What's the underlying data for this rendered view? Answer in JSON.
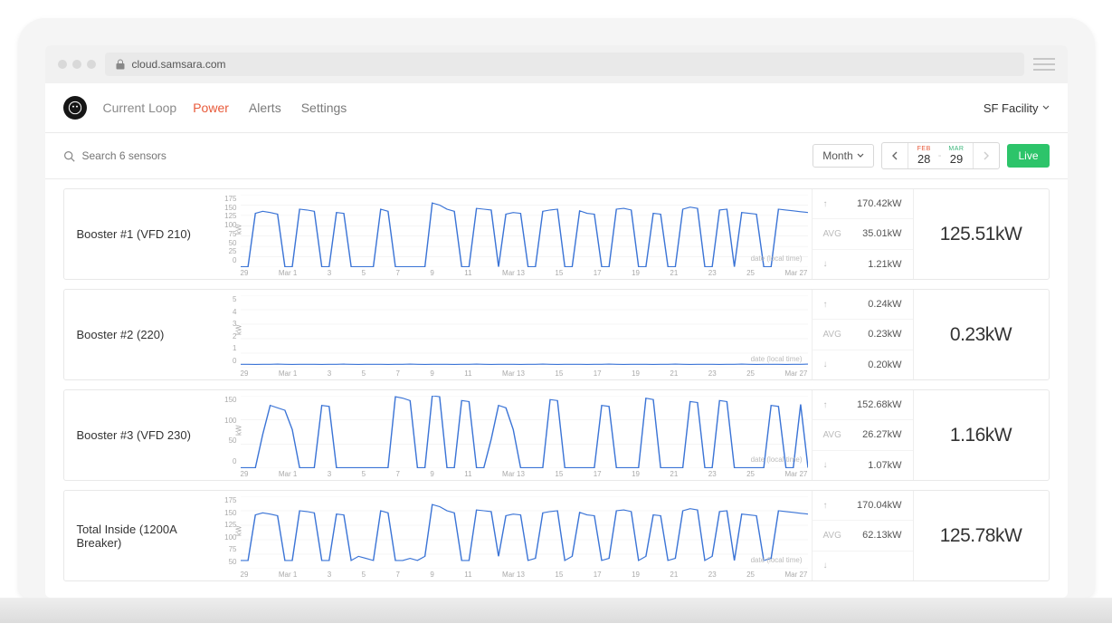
{
  "browser": {
    "url": "cloud.samsara.com"
  },
  "nav": {
    "breadcrumb": "Current Loop",
    "tabs": [
      "Power",
      "Alerts",
      "Settings"
    ],
    "active_tab": 0,
    "facility": "SF Facility"
  },
  "toolbar": {
    "search_placeholder": "Search 6 sensors",
    "range_label": "Month",
    "date_from": {
      "month": "FEB",
      "day": "28"
    },
    "date_to": {
      "month": "MAR",
      "day": "29"
    },
    "live_label": "Live"
  },
  "xaxis_ticks": [
    "29",
    "Mar 1",
    "3",
    "5",
    "7",
    "9",
    "11",
    "Mar 13",
    "15",
    "17",
    "19",
    "21",
    "23",
    "25",
    "Mar 27"
  ],
  "axis_label": "date (local time)",
  "yaxis_unit": "kW",
  "chart_style": {
    "line_color": "#3b74d6",
    "line_width": 1.0,
    "grid_color": "#eeeeee",
    "bg_color": "#ffffff",
    "tick_font_size": 8,
    "tick_color": "#aaaaaa"
  },
  "sensors": [
    {
      "name": "Booster #1 (VFD 210)",
      "max": "170.42kW",
      "avg": "35.01kW",
      "min": "1.21kW",
      "current": "125.51kW",
      "ymax": 175,
      "ytick_step": 25,
      "yticks": [
        "175",
        "150",
        "125",
        "100",
        "75",
        "50",
        "25",
        "0"
      ],
      "chart_type": "line",
      "series": [
        1,
        1,
        130,
        135,
        132,
        128,
        1,
        1,
        140,
        138,
        135,
        1,
        1,
        132,
        130,
        1,
        1,
        1,
        1,
        140,
        135,
        1,
        1,
        1,
        1,
        1,
        155,
        150,
        140,
        135,
        1,
        1,
        142,
        140,
        138,
        1,
        128,
        132,
        130,
        1,
        1,
        135,
        138,
        140,
        1,
        1,
        136,
        130,
        128,
        1,
        1,
        140,
        142,
        138,
        1,
        1,
        130,
        128,
        1,
        1,
        140,
        145,
        142,
        1,
        1,
        138,
        140,
        1,
        132,
        130,
        128,
        1,
        1,
        140,
        138,
        136,
        134,
        132
      ]
    },
    {
      "name": "Booster #2 (220)",
      "max": "0.24kW",
      "avg": "0.23kW",
      "min": "0.20kW",
      "current": "0.23kW",
      "ymax": 5,
      "ytick_step": 1,
      "yticks": [
        "5",
        "4",
        "3",
        "2",
        "1",
        "0"
      ],
      "chart_type": "line",
      "series": [
        0.23,
        0.23,
        0.22,
        0.23,
        0.23,
        0.24,
        0.23,
        0.22,
        0.23,
        0.23,
        0.23,
        0.22,
        0.23,
        0.23,
        0.24,
        0.23,
        0.22,
        0.23,
        0.23,
        0.23,
        0.22,
        0.23,
        0.23,
        0.24,
        0.23,
        0.22,
        0.23,
        0.23,
        0.23,
        0.22,
        0.23,
        0.23,
        0.24,
        0.23,
        0.22,
        0.23,
        0.23,
        0.23,
        0.22,
        0.23,
        0.23,
        0.24,
        0.23,
        0.22,
        0.23,
        0.23,
        0.23,
        0.22,
        0.23,
        0.23,
        0.24,
        0.23,
        0.22,
        0.23,
        0.23,
        0.23,
        0.22,
        0.23,
        0.23,
        0.24,
        0.23,
        0.22,
        0.23,
        0.23,
        0.23,
        0.22,
        0.23,
        0.23,
        0.24,
        0.23,
        0.22,
        0.23,
        0.23,
        0.23,
        0.22,
        0.23,
        0.23,
        0.24
      ]
    },
    {
      "name": "Booster #3 (VFD 230)",
      "max": "152.68kW",
      "avg": "26.27kW",
      "min": "1.07kW",
      "current": "1.16kW",
      "ymax": 150,
      "ytick_step": 50,
      "yticks": [
        "150",
        "100",
        "50",
        "0"
      ],
      "chart_type": "line",
      "series": [
        1,
        1,
        1,
        70,
        130,
        125,
        120,
        80,
        1,
        1,
        1,
        130,
        128,
        1,
        1,
        1,
        1,
        1,
        1,
        1,
        1,
        148,
        145,
        140,
        1,
        1,
        150,
        148,
        1,
        1,
        140,
        138,
        1,
        1,
        60,
        130,
        125,
        80,
        1,
        1,
        1,
        1,
        142,
        140,
        1,
        1,
        1,
        1,
        1,
        130,
        128,
        1,
        1,
        1,
        1,
        145,
        142,
        1,
        1,
        1,
        1,
        138,
        136,
        1,
        1,
        140,
        138,
        1,
        1,
        1,
        1,
        1,
        130,
        128,
        1,
        1,
        132,
        1
      ]
    },
    {
      "name": "Total Inside (1200A Breaker)",
      "max": "170.04kW",
      "avg": "62.13kW",
      "min": "",
      "current": "125.78kW",
      "ymax": 175,
      "ytick_step": 25,
      "yticks": [
        "175",
        "150",
        "125",
        "100",
        "75",
        "50"
      ],
      "chart_type": "line",
      "series": [
        20,
        20,
        130,
        135,
        132,
        128,
        20,
        20,
        140,
        138,
        135,
        20,
        20,
        132,
        130,
        20,
        30,
        25,
        20,
        140,
        135,
        20,
        20,
        25,
        20,
        30,
        155,
        150,
        140,
        135,
        20,
        20,
        142,
        140,
        138,
        30,
        128,
        132,
        130,
        20,
        25,
        135,
        138,
        140,
        20,
        30,
        136,
        130,
        128,
        20,
        25,
        140,
        142,
        138,
        20,
        30,
        130,
        128,
        20,
        25,
        140,
        145,
        142,
        20,
        30,
        138,
        140,
        20,
        132,
        130,
        128,
        20,
        25,
        140,
        138,
        136,
        134,
        132
      ]
    }
  ]
}
